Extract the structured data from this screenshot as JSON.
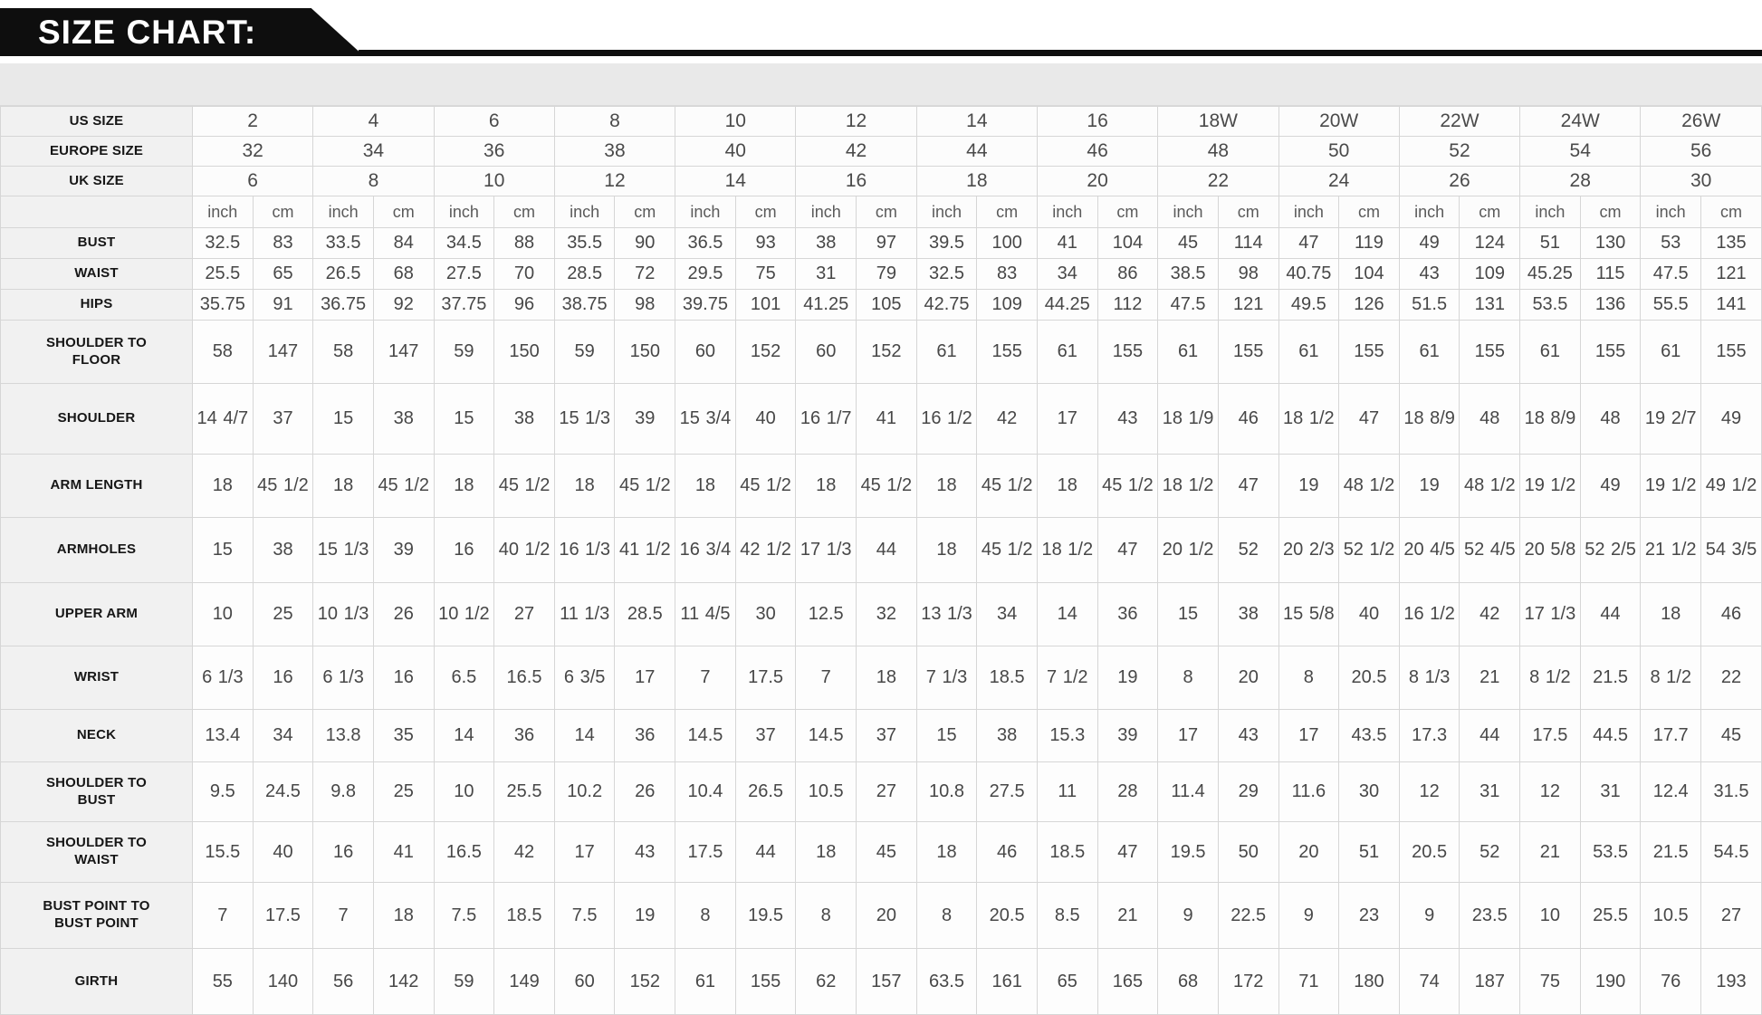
{
  "title": "SIZE CHART:",
  "accent_color": "#57c5e7",
  "table": {
    "unit_labels": {
      "inch": "inch",
      "cm": "cm"
    },
    "size_rows": [
      {
        "label": "US SIZE",
        "sizes": [
          "2",
          "4",
          "6",
          "8",
          "10",
          "12",
          "14",
          "16",
          "18W",
          "20W",
          "22W",
          "24W",
          "26W"
        ]
      },
      {
        "label": "EUROPE SIZE",
        "sizes": [
          "32",
          "34",
          "36",
          "38",
          "40",
          "42",
          "44",
          "46",
          "48",
          "50",
          "52",
          "54",
          "56"
        ]
      },
      {
        "label": "UK SIZE",
        "sizes": [
          "6",
          "8",
          "10",
          "12",
          "14",
          "16",
          "18",
          "20",
          "22",
          "24",
          "26",
          "28",
          "30"
        ]
      }
    ],
    "measurement_rows": [
      {
        "label": "BUST",
        "inch": [
          "32.5",
          "33.5",
          "34.5",
          "35.5",
          "36.5",
          "38",
          "39.5",
          "41",
          "45",
          "47",
          "49",
          "51",
          "53"
        ],
        "cm": [
          "83",
          "84",
          "88",
          "90",
          "93",
          "97",
          "100",
          "104",
          "114",
          "119",
          "124",
          "130",
          "135"
        ]
      },
      {
        "label": "WAIST",
        "inch": [
          "25.5",
          "26.5",
          "27.5",
          "28.5",
          "29.5",
          "31",
          "32.5",
          "34",
          "38.5",
          "40.75",
          "43",
          "45.25",
          "47.5"
        ],
        "cm": [
          "65",
          "68",
          "70",
          "72",
          "75",
          "79",
          "83",
          "86",
          "98",
          "104",
          "109",
          "115",
          "121"
        ]
      },
      {
        "label": "HIPS",
        "inch": [
          "35.75",
          "36.75",
          "37.75",
          "38.75",
          "39.75",
          "41.25",
          "42.75",
          "44.25",
          "47.5",
          "49.5",
          "51.5",
          "53.5",
          "55.5"
        ],
        "cm": [
          "91",
          "92",
          "96",
          "98",
          "101",
          "105",
          "109",
          "112",
          "121",
          "126",
          "131",
          "136",
          "141"
        ]
      },
      {
        "label": "SHOULDER TO FLOOR",
        "inch": [
          "58",
          "58",
          "59",
          "59",
          "60",
          "60",
          "61",
          "61",
          "61",
          "61",
          "61",
          "61",
          "61"
        ],
        "cm": [
          "147",
          "147",
          "150",
          "150",
          "152",
          "152",
          "155",
          "155",
          "155",
          "155",
          "155",
          "155",
          "155"
        ]
      },
      {
        "label": "SHOULDER",
        "inch": [
          "14 4/7",
          "15",
          "15",
          "15 1/3",
          "15 3/4",
          "16 1/7",
          "16 1/2",
          "17",
          "18 1/9",
          "18 1/2",
          "18 8/9",
          "18 8/9",
          "19 2/7"
        ],
        "cm": [
          "37",
          "38",
          "38",
          "39",
          "40",
          "41",
          "42",
          "43",
          "46",
          "47",
          "48",
          "48",
          "49"
        ]
      },
      {
        "label": "ARM LENGTH",
        "inch": [
          "18",
          "18",
          "18",
          "18",
          "18",
          "18",
          "18",
          "18",
          "18 1/2",
          "19",
          "19",
          "19 1/2",
          "19 1/2"
        ],
        "cm": [
          "45 1/2",
          "45 1/2",
          "45 1/2",
          "45 1/2",
          "45 1/2",
          "45 1/2",
          "45 1/2",
          "45 1/2",
          "47",
          "48 1/2",
          "48 1/2",
          "49",
          "49 1/2"
        ]
      },
      {
        "label": "ARMHOLES",
        "inch": [
          "15",
          "15 1/3",
          "16",
          "16 1/3",
          "16 3/4",
          "17 1/3",
          "18",
          "18 1/2",
          "20 1/2",
          "20 2/3",
          "20 4/5",
          "20 5/8",
          "21 1/2"
        ],
        "cm": [
          "38",
          "39",
          "40 1/2",
          "41 1/2",
          "42 1/2",
          "44",
          "45 1/2",
          "47",
          "52",
          "52 1/2",
          "52 4/5",
          "52 2/5",
          "54 3/5"
        ]
      },
      {
        "label": "UPPER ARM",
        "inch": [
          "10",
          "10 1/3",
          "10 1/2",
          "11 1/3",
          "11 4/5",
          "12.5",
          "13 1/3",
          "14",
          "15",
          "15 5/8",
          "16 1/2",
          "17 1/3",
          "18"
        ],
        "cm": [
          "25",
          "26",
          "27",
          "28.5",
          "30",
          "32",
          "34",
          "36",
          "38",
          "40",
          "42",
          "44",
          "46"
        ]
      },
      {
        "label": "WRIST",
        "inch": [
          "6 1/3",
          "6 1/3",
          "6.5",
          "6 3/5",
          "7",
          "7",
          "7 1/3",
          "7 1/2",
          "8",
          "8",
          "8 1/3",
          "8 1/2",
          "8 1/2"
        ],
        "cm": [
          "16",
          "16",
          "16.5",
          "17",
          "17.5",
          "18",
          "18.5",
          "19",
          "20",
          "20.5",
          "21",
          "21.5",
          "22"
        ]
      },
      {
        "label": "NECK",
        "inch": [
          "13.4",
          "13.8",
          "14",
          "14",
          "14.5",
          "14.5",
          "15",
          "15.3",
          "17",
          "17",
          "17.3",
          "17.5",
          "17.7"
        ],
        "cm": [
          "34",
          "35",
          "36",
          "36",
          "37",
          "37",
          "38",
          "39",
          "43",
          "43.5",
          "44",
          "44.5",
          "45"
        ]
      },
      {
        "label": "SHOULDER TO BUST",
        "inch": [
          "9.5",
          "9.8",
          "10",
          "10.2",
          "10.4",
          "10.5",
          "10.8",
          "11",
          "11.4",
          "11.6",
          "12",
          "12",
          "12.4"
        ],
        "cm": [
          "24.5",
          "25",
          "25.5",
          "26",
          "26.5",
          "27",
          "27.5",
          "28",
          "29",
          "30",
          "31",
          "31",
          "31.5"
        ]
      },
      {
        "label": "SHOULDER TO WAIST",
        "inch": [
          "15.5",
          "16",
          "16.5",
          "17",
          "17.5",
          "18",
          "18",
          "18.5",
          "19.5",
          "20",
          "20.5",
          "21",
          "21.5"
        ],
        "cm": [
          "40",
          "41",
          "42",
          "43",
          "44",
          "45",
          "46",
          "47",
          "50",
          "51",
          "52",
          "53.5",
          "54.5"
        ]
      },
      {
        "label": "BUST POINT TO BUST POINT",
        "inch": [
          "7",
          "7",
          "7.5",
          "7.5",
          "8",
          "8",
          "8",
          "8.5",
          "9",
          "9",
          "9",
          "10",
          "10.5"
        ],
        "cm": [
          "17.5",
          "18",
          "18.5",
          "19",
          "19.5",
          "20",
          "20.5",
          "21",
          "22.5",
          "23",
          "23.5",
          "25.5",
          "27"
        ]
      },
      {
        "label": "GIRTH",
        "inch": [
          "55",
          "56",
          "59",
          "60",
          "61",
          "62",
          "63.5",
          "65",
          "68",
          "71",
          "74",
          "75",
          "76"
        ],
        "cm": [
          "140",
          "142",
          "149",
          "152",
          "155",
          "157",
          "161",
          "165",
          "172",
          "180",
          "187",
          "190",
          "193"
        ]
      }
    ]
  }
}
